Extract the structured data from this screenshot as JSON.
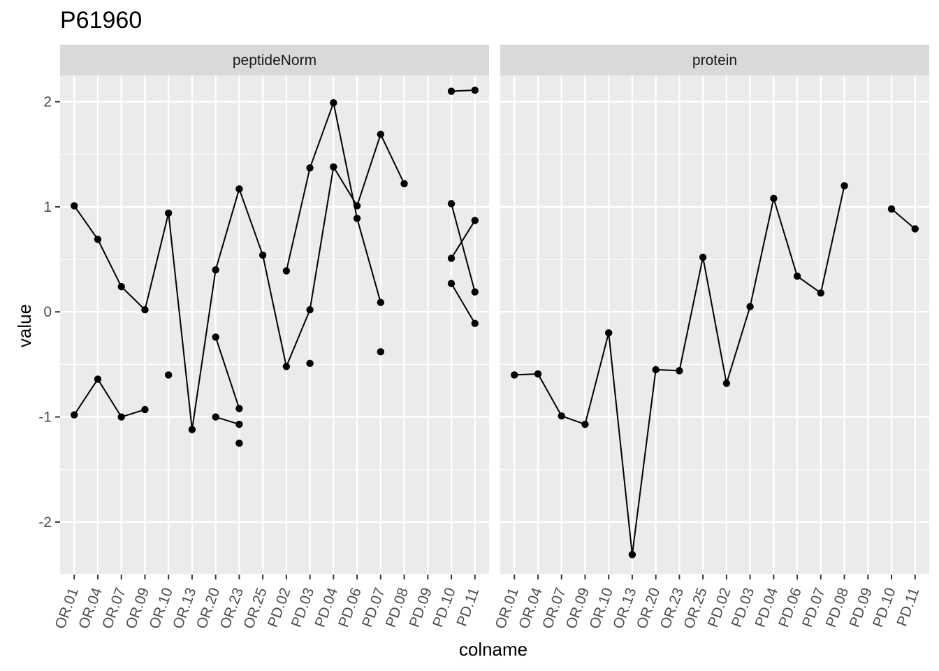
{
  "title": "P61960",
  "chart_data": {
    "type": "line",
    "title": "P61960",
    "xlabel": "colname",
    "ylabel": "value",
    "ylim": [
      -2.5,
      2.25
    ],
    "yticks": [
      -2,
      -1,
      0,
      1,
      2
    ],
    "categories": [
      "OR.01",
      "OR.04",
      "OR.07",
      "OR.09",
      "OR.10",
      "OR.13",
      "OR.20",
      "OR.23",
      "OR.25",
      "PD.02",
      "PD.03",
      "PD.04",
      "PD.06",
      "PD.07",
      "PD.08",
      "PD.09",
      "PD.10",
      "PD.11"
    ],
    "grid": true,
    "colors": {
      "panel_bg": "#ebebeb",
      "strip_bg": "#d9d9d9",
      "grid": "#ffffff",
      "line": "#000000",
      "point": "#000000"
    },
    "panels": [
      {
        "name": "peptideNorm",
        "series": [
          {
            "values": [
              1.01,
              0.69,
              0.24,
              0.02,
              0.94,
              -1.12,
              0.4,
              1.17,
              0.54,
              -0.52,
              0.02,
              1.38,
              1.01,
              1.69,
              1.22,
              null,
              0.51,
              0.87
            ]
          },
          {
            "values": [
              -0.98,
              -0.64,
              -1.0,
              -0.93,
              null,
              null,
              -0.24,
              -0.92,
              null,
              0.39,
              1.37,
              1.99,
              0.89,
              0.09,
              null,
              null,
              1.03,
              0.19
            ]
          },
          {
            "values": [
              null,
              null,
              null,
              null,
              -0.6,
              null,
              -1.0,
              -1.07,
              null,
              null,
              -0.49,
              null,
              null,
              -0.38,
              null,
              null,
              0.27,
              -0.11
            ]
          },
          {
            "values": [
              null,
              null,
              null,
              null,
              null,
              null,
              null,
              -1.25,
              null,
              null,
              null,
              null,
              null,
              null,
              null,
              null,
              2.1,
              2.11
            ]
          }
        ]
      },
      {
        "name": "protein",
        "series": [
          {
            "values": [
              -0.6,
              -0.59,
              -0.99,
              -1.07,
              -0.2,
              -2.31,
              -0.55,
              -0.56,
              0.52,
              -0.68,
              0.05,
              1.08,
              0.34,
              0.18,
              1.2,
              null,
              0.98,
              0.79
            ]
          }
        ]
      }
    ]
  }
}
